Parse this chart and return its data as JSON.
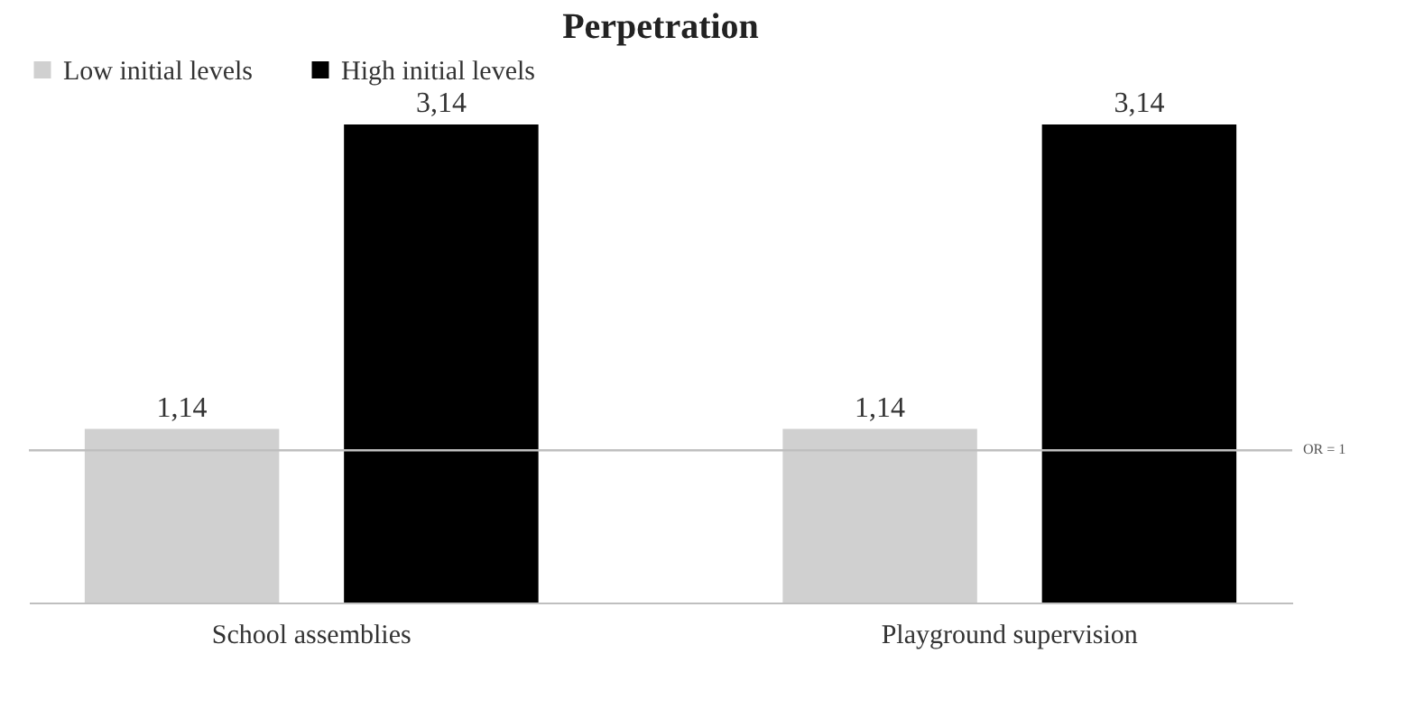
{
  "chart_data": {
    "type": "bar",
    "title": "Perpetration",
    "categories": [
      "School assemblies",
      "Playground supervision"
    ],
    "series": [
      {
        "name": "Low initial levels",
        "color": "#d0d0d0",
        "values": [
          1.14,
          1.14
        ],
        "value_labels": [
          "1,14",
          "1,14"
        ]
      },
      {
        "name": "High initial levels",
        "color": "#000000",
        "values": [
          3.14,
          3.14
        ],
        "value_labels": [
          "3,14",
          "3,14"
        ]
      }
    ],
    "ref_lines": [
      {
        "axis": "y",
        "value": 1,
        "label": "OR = 1",
        "color": "#bfbfbf"
      }
    ],
    "legend": "top",
    "grid": false
  }
}
